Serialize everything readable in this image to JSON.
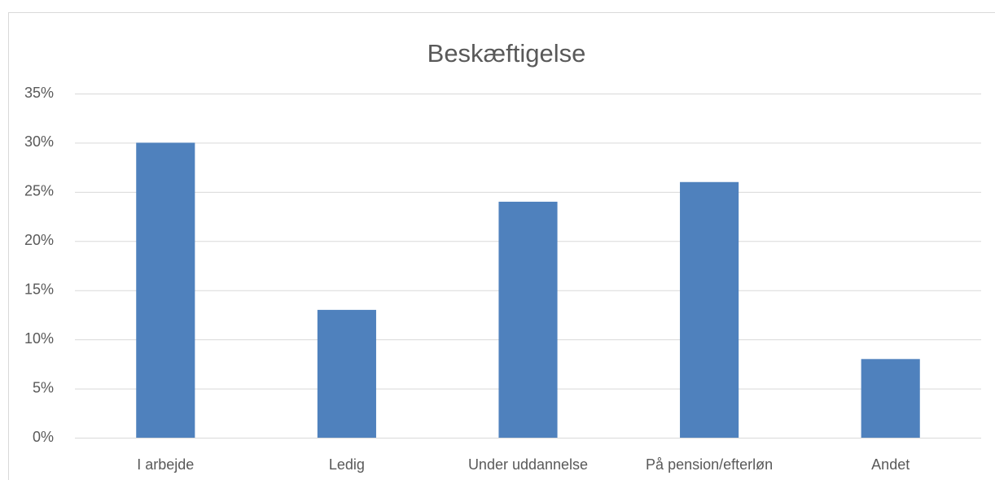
{
  "chart_data": {
    "type": "bar",
    "title": "Beskæftigelse",
    "categories": [
      "I arbejde",
      "Ledig",
      "Under uddannelse",
      "På pension/efterløn",
      "Andet"
    ],
    "values": [
      30,
      13,
      24,
      26,
      8
    ],
    "color": "#4f81bd",
    "ylim": [
      0,
      35
    ],
    "yticks": [
      {
        "value": 0,
        "label": "0%"
      },
      {
        "value": 5,
        "label": "5%"
      },
      {
        "value": 10,
        "label": "10%"
      },
      {
        "value": 15,
        "label": "15%"
      },
      {
        "value": 20,
        "label": "20%"
      },
      {
        "value": 25,
        "label": "25%"
      },
      {
        "value": 30,
        "label": "30%"
      },
      {
        "value": 35,
        "label": "35%"
      }
    ],
    "grid": true
  }
}
